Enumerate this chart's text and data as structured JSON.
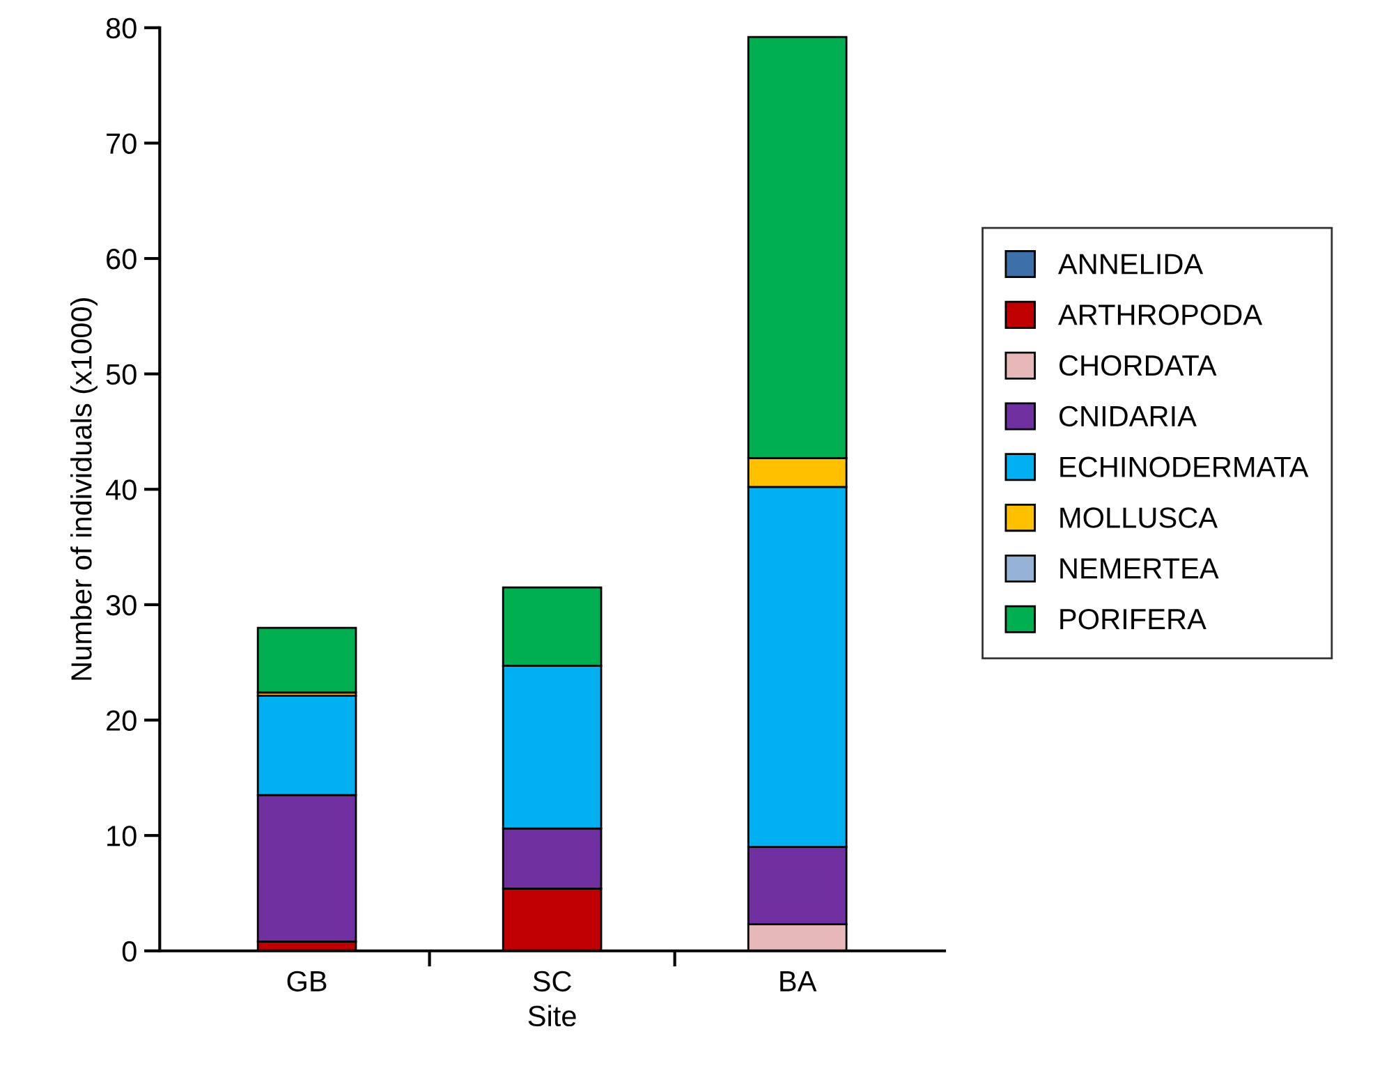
{
  "chart_data": {
    "type": "bar",
    "stacked": true,
    "xlabel": "Site",
    "ylabel": "Number of individuals (x1000)",
    "categories": [
      "GB",
      "SC",
      "BA"
    ],
    "ylim": [
      0,
      80
    ],
    "yticks": [
      0,
      10,
      20,
      30,
      40,
      50,
      60,
      70,
      80
    ],
    "legend": "right",
    "grid": false,
    "series": [
      {
        "name": "ANNELIDA",
        "color": "#3d6fa8",
        "values": [
          0,
          0,
          0
        ]
      },
      {
        "name": "ARTHROPODA",
        "color": "#c00000",
        "values": [
          0.8,
          5.4,
          0
        ]
      },
      {
        "name": "CHORDATA",
        "color": "#e6b8b7",
        "values": [
          0,
          0,
          2.3
        ]
      },
      {
        "name": "CNIDARIA",
        "color": "#7030a0",
        "values": [
          12.7,
          5.2,
          6.7
        ]
      },
      {
        "name": "ECHINODERMATA",
        "color": "#00b0f0",
        "values": [
          8.6,
          14.1,
          31.2
        ]
      },
      {
        "name": "MOLLUSCA",
        "color": "#ffc000",
        "values": [
          0.3,
          0,
          2.5
        ]
      },
      {
        "name": "NEMERTEA",
        "color": "#95b3d7",
        "values": [
          0,
          0,
          0
        ]
      },
      {
        "name": "PORIFERA",
        "color": "#00b050",
        "values": [
          5.6,
          6.8,
          36.5
        ]
      }
    ]
  }
}
